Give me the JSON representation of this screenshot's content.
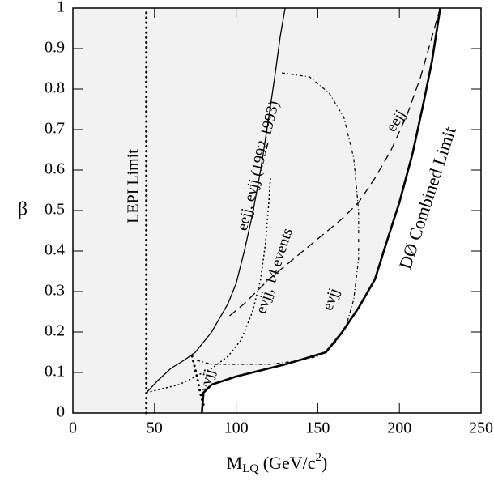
{
  "chart_data": {
    "type": "line",
    "ylabel": "β",
    "xlabel": [
      "M",
      "LQ",
      " (GeV/c",
      "2",
      ")"
    ],
    "xlim": [
      0,
      250
    ],
    "xticks": [
      0,
      50,
      100,
      150,
      200,
      250
    ],
    "ylim": [
      0,
      1
    ],
    "yticks": [
      0,
      0.1,
      0.2,
      0.3,
      0.4,
      0.5,
      0.6,
      0.7,
      0.8,
      0.9,
      1
    ],
    "series": [
      {
        "name": "LEPI Limit",
        "style": "dotted-thick",
        "x": [
          45,
          45
        ],
        "values": [
          0,
          1
        ]
      },
      {
        "name": "eejj, eνjj (1992-1993)",
        "style": "solid",
        "x": [
          45,
          52,
          60,
          68,
          75,
          85,
          95,
          100,
          105,
          110,
          115,
          120,
          124,
          127,
          130
        ],
        "values": [
          0.05,
          0.08,
          0.11,
          0.13,
          0.15,
          0.2,
          0.27,
          0.32,
          0.4,
          0.49,
          0.6,
          0.73,
          0.84,
          0.93,
          1
        ]
      },
      {
        "name": "DØ Combined Limit",
        "style": "thick",
        "x": [
          79,
          80,
          85,
          100,
          130,
          155,
          165,
          175,
          185,
          192,
          200,
          208,
          215,
          220,
          225
        ],
        "values": [
          0,
          0.05,
          0.07,
          0.09,
          0.12,
          0.15,
          0.2,
          0.26,
          0.33,
          0.42,
          0.52,
          0.64,
          0.77,
          0.87,
          1
        ]
      },
      {
        "name": "eejj",
        "style": "dashed",
        "x": [
          96,
          105,
          120,
          135,
          150,
          165,
          175,
          185,
          195,
          205,
          213,
          220,
          225
        ],
        "values": [
          0.24,
          0.27,
          0.33,
          0.38,
          0.43,
          0.48,
          0.52,
          0.58,
          0.65,
          0.74,
          0.83,
          0.93,
          1
        ]
      },
      {
        "name": "eνjj",
        "style": "dashdot",
        "x": [
          76,
          85,
          100,
          120,
          140,
          150,
          160,
          167,
          172,
          175,
          175,
          172,
          166,
          157,
          145,
          128
        ],
        "values": [
          0.13,
          0.12,
          0.12,
          0.12,
          0.13,
          0.14,
          0.17,
          0.21,
          0.28,
          0.38,
          0.5,
          0.63,
          0.73,
          0.79,
          0.83,
          0.84
        ]
      },
      {
        "name": "eνjj, 14 events",
        "style": "dotted",
        "x": [
          45,
          55,
          65,
          75,
          85,
          95,
          103,
          110,
          115,
          118,
          120,
          121
        ],
        "values": [
          0.05,
          0.06,
          0.07,
          0.09,
          0.11,
          0.14,
          0.18,
          0.25,
          0.33,
          0.42,
          0.52,
          0.58
        ]
      },
      {
        "name": "ννjj",
        "style": "dotted-thick",
        "x": [
          73,
          76,
          78,
          80
        ],
        "values": [
          0.14,
          0.09,
          0.05,
          0.02
        ]
      }
    ]
  }
}
